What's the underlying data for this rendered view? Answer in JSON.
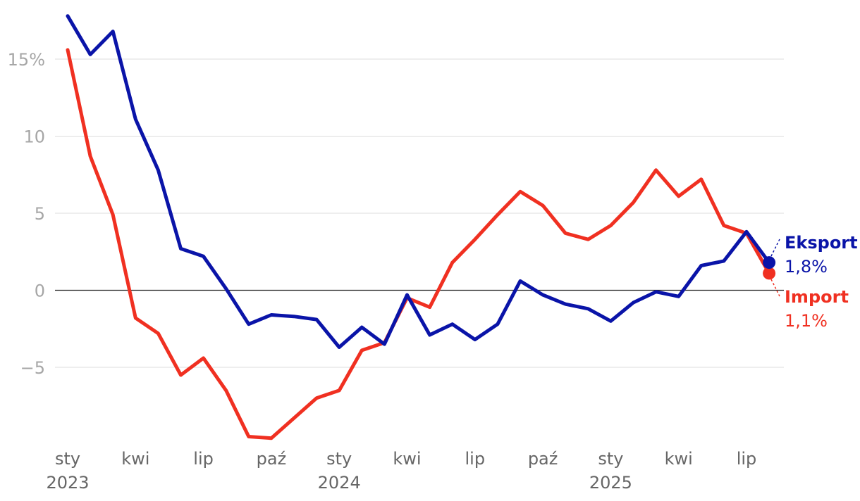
{
  "chart_data": {
    "type": "line",
    "title": "",
    "xlabel": "",
    "ylabel": "",
    "y_unit_suffix": "%",
    "ylim": [
      -10,
      18
    ],
    "y_ticks": [
      -5,
      0,
      5,
      10,
      15
    ],
    "y_tick_labels": [
      "−5",
      "0",
      "5",
      "10",
      "15%"
    ],
    "grid": true,
    "x": [
      "2023-01",
      "2023-02",
      "2023-03",
      "2023-04",
      "2023-05",
      "2023-06",
      "2023-07",
      "2023-08",
      "2023-09",
      "2023-10",
      "2023-11",
      "2023-12",
      "2024-01",
      "2024-02",
      "2024-03",
      "2024-04",
      "2024-05",
      "2024-06",
      "2024-07",
      "2024-08",
      "2024-09",
      "2024-10",
      "2024-11",
      "2024-12",
      "2025-01",
      "2025-02",
      "2025-03",
      "2025-04",
      "2025-05",
      "2025-06",
      "2025-07",
      "2025-08"
    ],
    "x_ticks": [
      {
        "x": "2023-01",
        "label": "sty",
        "year": "2023"
      },
      {
        "x": "2023-04",
        "label": "kwi",
        "year": ""
      },
      {
        "x": "2023-07",
        "label": "lip",
        "year": ""
      },
      {
        "x": "2023-10",
        "label": "paź",
        "year": ""
      },
      {
        "x": "2024-01",
        "label": "sty",
        "year": "2024"
      },
      {
        "x": "2024-04",
        "label": "kwi",
        "year": ""
      },
      {
        "x": "2024-07",
        "label": "lip",
        "year": ""
      },
      {
        "x": "2024-10",
        "label": "paź",
        "year": ""
      },
      {
        "x": "2025-01",
        "label": "sty",
        "year": "2025"
      },
      {
        "x": "2025-04",
        "label": "kwi",
        "year": ""
      },
      {
        "x": "2025-07",
        "label": "lip",
        "year": ""
      }
    ],
    "series": [
      {
        "name": "Eksport",
        "color": "#0a14a8",
        "end_label": "1,8%",
        "values": [
          17.8,
          15.3,
          16.8,
          11.1,
          7.8,
          2.7,
          2.2,
          0.1,
          -2.2,
          -1.6,
          -1.7,
          -1.9,
          -3.7,
          -2.4,
          -3.5,
          -0.3,
          -2.9,
          -2.2,
          -3.2,
          -2.2,
          0.6,
          -0.3,
          -0.9,
          -1.2,
          -2.0,
          -0.8,
          -0.1,
          -0.4,
          1.6,
          1.9,
          3.8,
          1.8
        ]
      },
      {
        "name": "Import",
        "color": "#f03021",
        "end_label": "1,1%",
        "values": [
          15.6,
          8.7,
          4.9,
          -1.8,
          -2.8,
          -5.5,
          -4.4,
          -6.5,
          -9.5,
          -9.6,
          -8.3,
          -7.0,
          -6.5,
          -3.9,
          -3.4,
          -0.5,
          -1.1,
          1.8,
          3.3,
          4.9,
          6.4,
          5.5,
          3.7,
          3.3,
          4.2,
          5.7,
          7.8,
          6.1,
          7.2,
          4.2,
          3.7,
          1.1
        ]
      }
    ]
  }
}
